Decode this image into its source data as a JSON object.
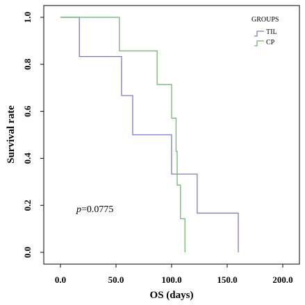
{
  "chart_data": {
    "type": "line",
    "subtype": "kaplan-meier step",
    "xlabel": "OS (days)",
    "ylabel": "Survival rate",
    "xlim": [
      -15,
      215
    ],
    "ylim": [
      -0.05,
      1.05
    ],
    "x_ticks": [
      {
        "value": 0,
        "label": "0.0"
      },
      {
        "value": 50,
        "label": "50.0"
      },
      {
        "value": 100,
        "label": "100.0"
      },
      {
        "value": 150,
        "label": "150.0"
      },
      {
        "value": 200,
        "label": "200.0"
      }
    ],
    "y_ticks": [
      {
        "value": 0.0,
        "label": "0.0"
      },
      {
        "value": 0.2,
        "label": "0.2"
      },
      {
        "value": 0.4,
        "label": "0.4"
      },
      {
        "value": 0.6,
        "label": "0.6"
      },
      {
        "value": 0.8,
        "label": "0.8"
      },
      {
        "value": 1.0,
        "label": "1.0"
      }
    ],
    "grid": false,
    "legend": {
      "title": "GROUPS",
      "position": "top-right"
    },
    "series": [
      {
        "name": "TIL",
        "color": "#7b7bbf",
        "steps": [
          [
            0,
            1.0
          ],
          [
            17,
            0.833
          ],
          [
            55,
            0.667
          ],
          [
            65,
            0.5
          ],
          [
            100,
            0.333
          ],
          [
            123,
            0.167
          ],
          [
            160,
            0.0
          ]
        ]
      },
      {
        "name": "CP",
        "color": "#70b870",
        "steps": [
          [
            0,
            1.0
          ],
          [
            53,
            0.857
          ],
          [
            87,
            0.714
          ],
          [
            100,
            0.571
          ],
          [
            104,
            0.429
          ],
          [
            105,
            0.286
          ],
          [
            108,
            0.143
          ],
          [
            112,
            0.0
          ]
        ]
      }
    ],
    "annotation": {
      "italic": "p",
      "text": "=0.0775",
      "x": 10,
      "y": 0.19
    }
  }
}
